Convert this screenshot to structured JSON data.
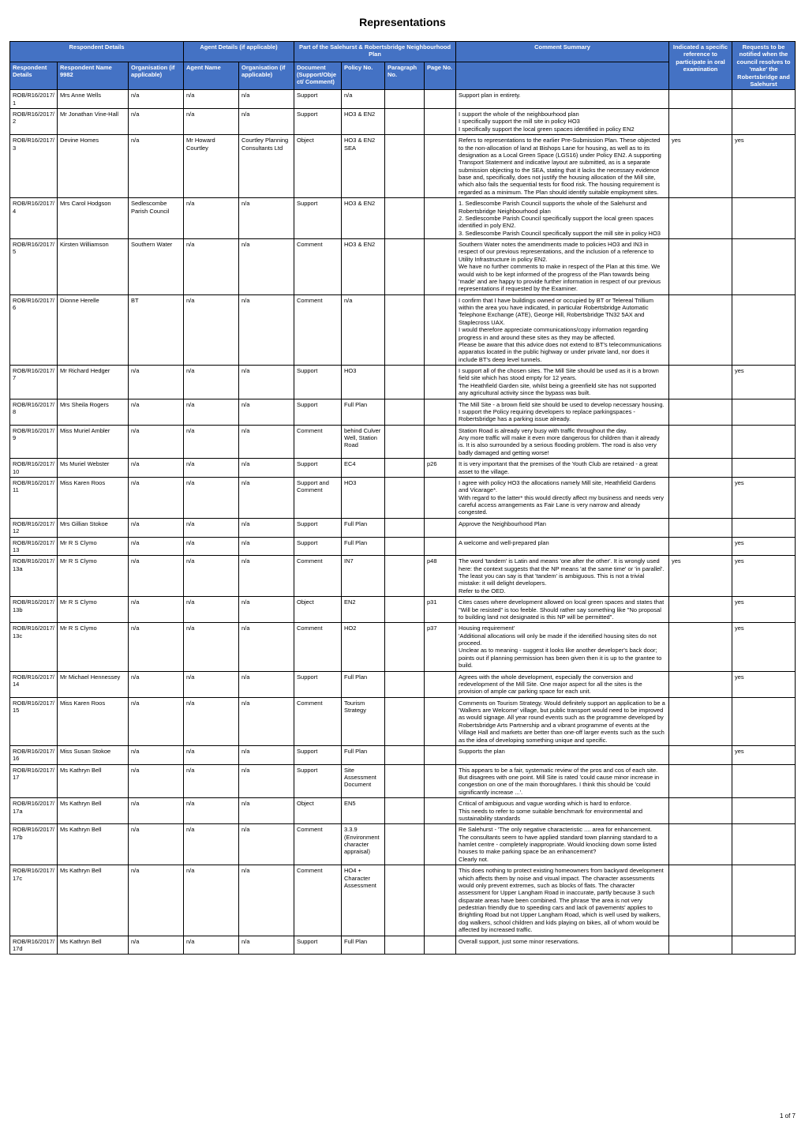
{
  "title": "Representations",
  "pageFooter": "1 of 7",
  "groupHeaders": {
    "respondent": "Respondent Details",
    "agent": "Agent Details (if applicable)",
    "plan": "Part of the Salehurst & Robertsbridge Neighbourhood Plan",
    "summary": "Comment Summary",
    "indicated": "Indicated a specific reference to participate in oral examination",
    "notify": "Requests to be notified when the council resolves to 'make' the Robertsbridge and Salehurst"
  },
  "columns": [
    "Respondent Details",
    "Respondent Name 9982",
    "Organisation (if applicable)",
    "Agent Name",
    "Organisation (if applicable)",
    "Document (Support/Object/ Comment)",
    "Policy No.",
    "Paragraph No.",
    "Page No.",
    "",
    "",
    ""
  ],
  "rows": [
    [
      "ROB/R16/2017/1",
      "Mrs Anne Wells",
      "n/a",
      "n/a",
      "n/a",
      "Support",
      "n/a",
      "",
      "",
      "Support plan in entirety.",
      "",
      ""
    ],
    [
      "ROB/R16/2017/2",
      "Mr Jonathan Vine-Hall",
      "n/a",
      "n/a",
      "n/a",
      "Support",
      "HO3 & EN2",
      "",
      "",
      "I support the whole of the neighbourhood plan\nI specifically support the mill site in policy HO3\nI specifically support the local green spaces identified in policy EN2",
      "",
      ""
    ],
    [
      "ROB/R16/2017/3",
      "Devine Homes",
      "n/a",
      "Mr Howard Courtley",
      "Courtley Planning Consultants Ltd",
      "Object",
      "HO3 & EN2 SEA",
      "",
      "",
      "Refers to representations to the earlier Pre-Submission Plan. These objected to the non-allocation of land at Bishops Lane for housing, as well as to its designation as a Local Green Space (LGS16) under Policy EN2. A supporting Transport Statement and indicative layout are submitted, as is a separate submission objecting to the SEA, stating that it lacks the necessary evidence base and, specifically, does not justify the housing allocation of the Mill site, which also fails the sequential tests for flood risk. The housing requirement is regarded as a minimum. The Plan should identify suitable employment sites.",
      "yes",
      "yes"
    ],
    [
      "ROB/R16/2017/4",
      "Mrs Carol Hodgson",
      "Sedlescombe Parish Council",
      "n/a",
      "n/a",
      "Support",
      "HO3 & EN2",
      "",
      "",
      "1. Sedlescombe Parish Council supports the whole of the Salehurst and Robertsbridge Neighbourhood plan\n2. Sedlescombe Parish Council specifically support the local green spaces identified in poly EN2.\n3. Sedlescombe Parish Council specifically support the mill site in policy HO3",
      "",
      ""
    ],
    [
      "ROB/R16/2017/5",
      "Kirsten Williamson",
      "Southern Water",
      "n/a",
      "n/a",
      "Comment",
      "HO3 & EN2",
      "",
      "",
      "Southern Water notes the amendments made to policies HO3 and IN3 in respect of our previous representations, and the inclusion of a reference to Utility Infrastructure in policy EN2.\nWe have no further comments to make in respect of the Plan at this time. We would wish to be kept informed of the progress of the Plan towards being 'made' and are happy to provide further information in respect of our previous representations if requested by the Examiner.",
      "",
      ""
    ],
    [
      "ROB/R16/2017/6",
      "Dionne Herelle",
      "BT",
      "n/a",
      "n/a",
      "Comment",
      "n/a",
      "",
      "",
      "I confirm that I have buildings owned or occupied by BT or Telereal Trillium within the area you have indicated, in particular Robertsbridge Automatic Telephone Exchange (ATE), George Hill, Robertsbridge TN32 5AX and Staplecross UAX.\nI would therefore appreciate communications/copy information regarding progress in and around these sites as they may be affected.\nPlease be aware that this advice does not extend to BT's telecommunications apparatus located in the public highway or under private land, nor does it include BT's deep level tunnels.",
      "",
      ""
    ],
    [
      "ROB/R16/2017/7",
      "Mr Richard Hedger",
      "n/a",
      "n/a",
      "n/a",
      "Support",
      "HO3",
      "",
      "",
      "I support all of the chosen sites. The Mill Site should be used as it is a brown field site which has stood empty for 12 years.\nThe Heathfield Garden site, whilst being a greenfield site has not supported any agricultural activity since the bypass was built.",
      "",
      "yes"
    ],
    [
      "ROB/R16/2017/8",
      "Mrs Sheila Rogers",
      "n/a",
      "n/a",
      "n/a",
      "Support",
      "Full Plan",
      "",
      "",
      "The Mill Site - a brown field site should be used to develop necessary housing.\nI support the Policy requiring developers to replace parkingspaces - Robertsbridge has a parking issue already.",
      "",
      ""
    ],
    [
      "ROB/R16/2017/9",
      "Miss Muriel Ambler",
      "n/a",
      "n/a",
      "n/a",
      "Comment",
      "behind Culver Well, Station Road",
      "",
      "",
      "Station Road is already very busy with traffic throughout the day.\nAny more traffic will make it even more dangerous for children than it already is. It is also surrounded by a serious flooding problem. The road is also very badly damaged and getting worse!",
      "",
      ""
    ],
    [
      "ROB/R16/2017/10",
      "Ms Muriel Webster",
      "n/a",
      "n/a",
      "n/a",
      "Support",
      "EC4",
      "",
      "p26",
      "It is very important that the premises of the Youth Club are retained - a great asset to the village.",
      "",
      ""
    ],
    [
      "ROB/R16/2017/11",
      "Miss Karen Roos",
      "n/a",
      "n/a",
      "n/a",
      "Support and Comment",
      "HO3",
      "",
      "",
      "I agree with policy HO3 the allocations namely Mill site, Heathfield Gardens and Vicarage*.\nWith regard to the latter* this would directly affect my business and needs very careful access arrangements as Fair Lane is very narrow and already congested.",
      "",
      "yes"
    ],
    [
      "ROB/R16/2017/12",
      "Mrs Gillian Stokoe",
      "n/a",
      "n/a",
      "n/a",
      "Support",
      "Full Plan",
      "",
      "",
      "Approve the Neighbourhood Plan",
      "",
      ""
    ],
    [
      "ROB/R16/2017/13",
      "Mr R S Clymo",
      "n/a",
      "n/a",
      "n/a",
      "Support",
      "Full Plan",
      "",
      "",
      "A welcome and well-prepared plan",
      "",
      "yes"
    ],
    [
      "ROB/R16/2017/13a",
      "Mr R S Clymo",
      "n/a",
      "n/a",
      "n/a",
      "Comment",
      "IN7",
      "",
      "p48",
      "The word 'tandem' is Latin and means 'one after the other'. It is wrongly used here: the context suggests that the NP means 'at the same time' or 'in parallel'.\nThe least you can say is that 'tandem' is ambiguous. This is not a trivial mistake: it will delight developers.\nRefer to the OED.",
      "yes",
      "yes"
    ],
    [
      "ROB/R16/2017/13b",
      "Mr R S Clymo",
      "n/a",
      "n/a",
      "n/a",
      "Object",
      "EN2",
      "",
      "p31",
      "Cites cases where development allowed on local green spaces and states that \"Will be resisted\" is too feeble. Should rather say something like \"No proposal to building land not designated is this NP will be permitted\".",
      "",
      "yes"
    ],
    [
      "ROB/R16/2017/13c",
      "Mr R S Clymo",
      "n/a",
      "n/a",
      "n/a",
      "Comment",
      "HO2",
      "",
      "p37",
      "Housing requirement'\n'Additional allocations will only be made if the identified housing sites do not proceed.\nUnclear as to meaning - suggest it looks like another developer's back door; points out if planning permission has been given then it is up to the grantee to build.",
      "",
      "yes"
    ],
    [
      "ROB/R16/2017/14",
      "Mr Michael Hennessey",
      "n/a",
      "n/a",
      "n/a",
      "Support",
      "Full Plan",
      "",
      "",
      "Agrees with the whole development, especially the conversion and redevelopment of the Mill Site. One major aspect for all the sites is the provision of ample car parking space for each unit.",
      "",
      "yes"
    ],
    [
      "ROB/R16/2017/15",
      "Miss Karen Roos",
      "n/a",
      "n/a",
      "n/a",
      "Comment",
      "Tourism Strategy",
      "",
      "",
      "Comments on Tourism Strategy. Would definitely support an application to be a 'Walkers are Welcome' village, but public transport would need to be improved as would signage. All year round events such as the programme developed by Robertsbridge Arts Partnership and a vibrant programme of events at the Village Hall and markets are better than one-off larger events such as the such as the idea of developing something unique and specific.",
      "",
      ""
    ],
    [
      "ROB/R16/2017/16",
      "Miss Susan Stokoe",
      "n/a",
      "n/a",
      "n/a",
      "Support",
      "Full Plan",
      "",
      "",
      "Supports the plan",
      "",
      "yes"
    ],
    [
      "ROB/R16/2017/17",
      "Ms Kathryn Bell",
      "n/a",
      "n/a",
      "n/a",
      "Support",
      "Site Assessment Document",
      "",
      "",
      "This appears to be a fair, systematic review of the pros and cos of each site.\nBut disagrees with one point. Mill Site is rated 'could cause minor increase in congestion on one of the main thoroughfares. I think this should be 'could significantly increase ...'.",
      "",
      ""
    ],
    [
      "ROB/R16/2017/17a",
      "Ms Kathryn Bell",
      "n/a",
      "n/a",
      "n/a",
      "Object",
      "EN5",
      "",
      "",
      "Critical of ambiguous and vague wording which is hard to enforce.\nThis needs to refer to some suitable benchmark for environmental and sustainability standards",
      "",
      ""
    ],
    [
      "ROB/R16/2017/17b",
      "Ms Kathryn Bell",
      "n/a",
      "n/a",
      "n/a",
      "Comment",
      "3.3.9 (Environment character appraisal)",
      "",
      "",
      "Re Salehurst - 'The only negative characteristic .... area for enhancement.\nThe consultants seem to have applied standard town planning standard to a hamlet centre - completely inappropriate. Would knocking down some listed houses to make parking space be an enhancement?\nClearly not.",
      "",
      ""
    ],
    [
      "ROB/R16/2017/17c",
      "Ms Kathryn Bell",
      "n/a",
      "n/a",
      "n/a",
      "Comment",
      "HO4 + Character Assessment",
      "",
      "",
      "This does nothing to protect existing homeowners from backyard development which affects them by noise and visual impact. The character assessments would only prevent extremes, such as blocks of flats. The character assessment for Upper Langham Road in inaccurate, partly because 3 such disparate areas have been combined. The phrase 'the area is not very pedestrian friendly due to speeding cars and lack of pavements' applies to Brightling Road but not Upper Langham Road, which is well used by walkers, dog walkers, school children and kids playing on bikes, all of whom would be affected by increased traffic.",
      "",
      ""
    ],
    [
      "ROB/R16/2017/17d",
      "Ms Kathryn Bell",
      "n/a",
      "n/a",
      "n/a",
      "Support",
      "Full Plan",
      "",
      "",
      "Overall support, just some minor reservations.",
      "",
      ""
    ]
  ]
}
